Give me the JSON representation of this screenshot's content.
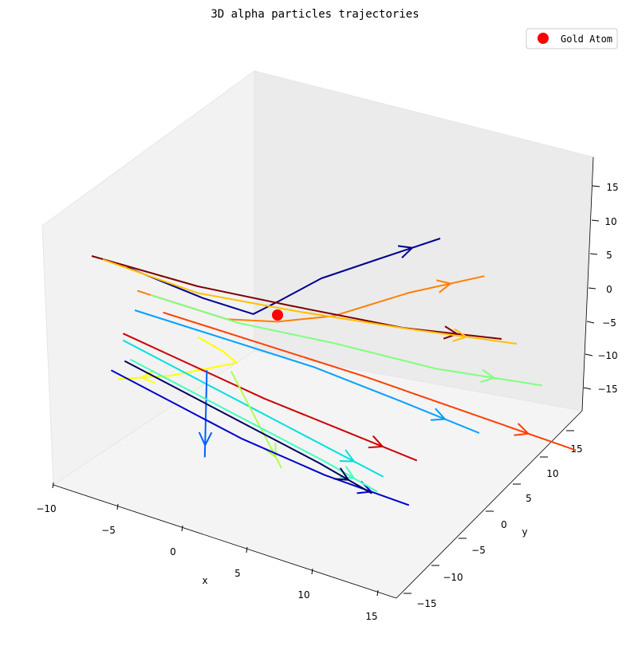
{
  "chart_data": {
    "type": "line",
    "title": "3D alpha particles trajectories",
    "xlabel": "x",
    "ylabel": "y",
    "zlabel": "",
    "xlim": [
      -10,
      16
    ],
    "ylim": [
      -16,
      18
    ],
    "zlim": [
      -18,
      18
    ],
    "x_ticks": [
      "−10",
      "−5",
      "0",
      "5",
      "10",
      "15"
    ],
    "y_ticks": [
      "−15",
      "−10",
      "−5",
      "0",
      "5",
      "10",
      "15"
    ],
    "z_ticks": [
      "−15",
      "−10",
      "−5",
      "0",
      "5",
      "10",
      "15"
    ],
    "legend": {
      "placement": "top-right",
      "entries": [
        {
          "label": "Gold Atom",
          "marker": "circle",
          "color": "#ff0000"
        }
      ]
    },
    "gold_atom": {
      "x": 0,
      "y": 0,
      "z": 0,
      "color": "#ff0000"
    },
    "series": [
      {
        "color": "#00008f",
        "points": [
          [
            -9,
            -6,
            3
          ],
          [
            -4,
            -4,
            1
          ],
          [
            -1,
            -2,
            0
          ],
          [
            0,
            0,
            2
          ],
          [
            2,
            3,
            6
          ],
          [
            5,
            6,
            10
          ],
          [
            8,
            10,
            14
          ]
        ]
      },
      {
        "color": "#ff7f00",
        "points": [
          [
            -9,
            -4,
            -1
          ],
          [
            -3,
            -2,
            -2
          ],
          [
            0,
            0,
            -1
          ],
          [
            3,
            3,
            1
          ],
          [
            7,
            7,
            6
          ],
          [
            11,
            11,
            10
          ]
        ]
      },
      {
        "color": "#7f0000",
        "points": [
          [
            -10,
            -10,
            5
          ],
          [
            -4,
            -5,
            3
          ],
          [
            1,
            0,
            2
          ],
          [
            7,
            6,
            1
          ],
          [
            12,
            12,
            1
          ]
        ]
      },
      {
        "color": "#ffbf00",
        "points": [
          [
            -10,
            -8,
            4
          ],
          [
            -4,
            -5,
            2
          ],
          [
            2,
            -1,
            2
          ],
          [
            8,
            4,
            2
          ],
          [
            14,
            10,
            2
          ]
        ]
      },
      {
        "color": "#7fff7f",
        "points": [
          [
            -8,
            -4,
            -1
          ],
          [
            -2,
            -2,
            -2
          ],
          [
            4,
            1,
            -2
          ],
          [
            10,
            5,
            -3
          ],
          [
            16,
            10,
            -3
          ]
        ]
      },
      {
        "color": "#00a0ff",
        "points": [
          [
            -10,
            -2,
            -5
          ],
          [
            -4,
            0,
            -6
          ],
          [
            2,
            2,
            -7
          ],
          [
            8,
            4,
            -9
          ],
          [
            13,
            6,
            -11
          ]
        ]
      },
      {
        "color": "#ff3f00",
        "points": [
          [
            -7,
            -4,
            -3
          ],
          [
            -1,
            0,
            -5
          ],
          [
            5,
            4,
            -7
          ],
          [
            11,
            9,
            -10
          ],
          [
            17,
            14,
            -13
          ]
        ]
      },
      {
        "color": "#ffff00",
        "points": [
          [
            -6,
            0,
            -7
          ],
          [
            -4,
            0,
            -8
          ],
          [
            -3,
            0,
            -9
          ],
          [
            -5,
            0,
            -11
          ],
          [
            -8,
            0,
            -14
          ],
          [
            -12,
            0,
            -17
          ]
        ]
      },
      {
        "color": "#cc0000",
        "points": [
          [
            -10,
            -4,
            -8
          ],
          [
            -5,
            -3,
            -10
          ],
          [
            0,
            -2,
            -12
          ],
          [
            5,
            0,
            -14
          ],
          [
            10,
            2,
            -16
          ]
        ]
      },
      {
        "color": "#00e0e0",
        "points": [
          [
            -10,
            -4,
            -9
          ],
          [
            -5,
            -4,
            -11
          ],
          [
            0,
            -4,
            -13
          ],
          [
            5,
            -4,
            -15
          ],
          [
            10,
            -4,
            -17
          ]
        ]
      },
      {
        "color": "#0060ff",
        "points": [
          [
            -4,
            -3,
            -10
          ],
          [
            -4,
            -3,
            -12
          ],
          [
            -4,
            -3,
            -15
          ],
          [
            -4,
            -3,
            -19
          ],
          [
            -4,
            -3,
            -23
          ]
        ]
      },
      {
        "color": "#afff4f",
        "points": [
          [
            -3,
            -1,
            -10
          ],
          [
            -2,
            -1,
            -13
          ],
          [
            -1,
            -1,
            -16
          ],
          [
            0,
            -1,
            -19
          ],
          [
            1,
            -1,
            -22
          ]
        ]
      },
      {
        "color": "#0000cc",
        "points": [
          [
            -10,
            -6,
            -13
          ],
          [
            -5,
            -6,
            -15
          ],
          [
            0,
            -6,
            -17
          ],
          [
            6,
            -5,
            -19
          ],
          [
            12,
            -4,
            -20
          ]
        ]
      },
      {
        "color": "#40ffbf",
        "points": [
          [
            -9,
            -5,
            -11
          ],
          [
            -4,
            -5,
            -13
          ],
          [
            1,
            -5,
            -15
          ],
          [
            6,
            -5,
            -17
          ],
          [
            10,
            -5,
            -19
          ]
        ]
      },
      {
        "color": "#000060",
        "points": [
          [
            -9,
            -6,
            -11
          ],
          [
            -4,
            -6,
            -13
          ],
          [
            1,
            -6,
            -15
          ],
          [
            6,
            -6,
            -17
          ],
          [
            10,
            -6,
            -19
          ]
        ]
      }
    ]
  }
}
